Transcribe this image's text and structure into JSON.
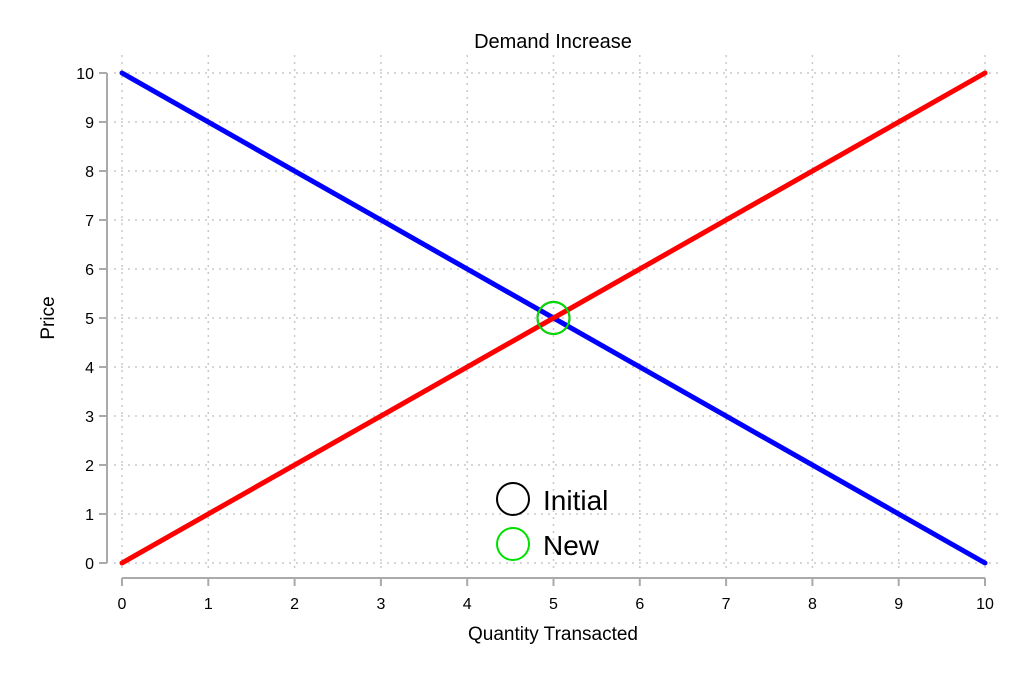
{
  "chart_data": {
    "type": "line",
    "title": "Demand Increase",
    "xlabel": "Quantity Transacted",
    "ylabel": "Price",
    "xlim": [
      0,
      10
    ],
    "ylim": [
      0,
      10
    ],
    "xticks": [
      "0",
      "1",
      "2",
      "3",
      "4",
      "5",
      "6",
      "7",
      "8",
      "9",
      "10"
    ],
    "yticks": [
      "0",
      "1",
      "2",
      "3",
      "4",
      "5",
      "6",
      "7",
      "8",
      "9",
      "10"
    ],
    "grid": true,
    "series": [
      {
        "color": "#0000ff",
        "x": [
          0,
          10
        ],
        "y": [
          10,
          0
        ]
      },
      {
        "color": "#ff0000",
        "x": [
          0,
          10
        ],
        "y": [
          0,
          10
        ]
      }
    ],
    "points": [
      {
        "name": "Initial",
        "x": 5,
        "y": 5,
        "color": "#000000"
      },
      {
        "name": "New",
        "x": 5,
        "y": 5,
        "color": "#00e000"
      }
    ],
    "legend": {
      "placement": "bottom-center",
      "entries": [
        {
          "label": "Initial",
          "color": "#000000"
        },
        {
          "label": "New",
          "color": "#00e000"
        }
      ]
    }
  }
}
